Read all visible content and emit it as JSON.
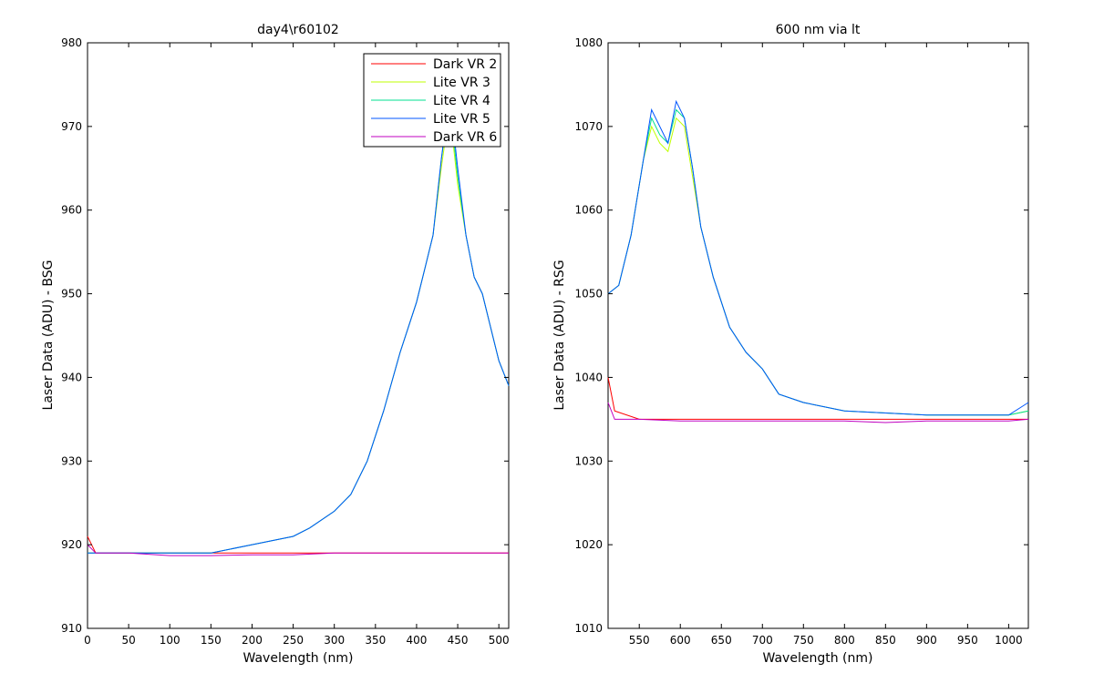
{
  "chart_data": [
    {
      "type": "line",
      "title": "day4\\r60102",
      "xlabel": "Wavelength (nm)",
      "ylabel": "Laser Data (ADU) - BSG",
      "xlim": [
        0,
        512
      ],
      "ylim": [
        910,
        980
      ],
      "xticks": [
        0,
        50,
        100,
        150,
        200,
        250,
        300,
        350,
        400,
        450,
        500
      ],
      "yticks": [
        910,
        920,
        930,
        940,
        950,
        960,
        970,
        980
      ],
      "legend_position": "top-right",
      "series": [
        {
          "name": "Dark VR 2",
          "color": "#ff0000",
          "x": [
            0,
            10,
            50,
            100,
            150,
            200,
            250,
            300,
            350,
            400,
            450,
            500,
            512
          ],
          "y": [
            921,
            919,
            919,
            919,
            919,
            919,
            919,
            919,
            919,
            919,
            919,
            919,
            919
          ]
        },
        {
          "name": "Lite VR 3",
          "color": "#bfff00",
          "x": [
            0,
            50,
            100,
            150,
            200,
            250,
            270,
            300,
            320,
            340,
            360,
            380,
            400,
            410,
            420,
            430,
            440,
            450,
            460,
            470,
            480,
            490,
            500,
            512
          ],
          "y": [
            919,
            919,
            919,
            919,
            920,
            921,
            922,
            924,
            926,
            930,
            936,
            943,
            949,
            953,
            957,
            965,
            972,
            963,
            957,
            952,
            950,
            946,
            942,
            939
          ]
        },
        {
          "name": "Lite VR 4",
          "color": "#00e090",
          "x": [
            0,
            50,
            100,
            150,
            200,
            250,
            270,
            300,
            320,
            340,
            360,
            380,
            400,
            410,
            420,
            430,
            440,
            450,
            460,
            470,
            480,
            490,
            500,
            512
          ],
          "y": [
            919,
            919,
            919,
            919,
            920,
            921,
            922,
            924,
            926,
            930,
            936,
            943,
            949,
            953,
            957,
            966,
            973,
            964,
            957,
            952,
            950,
            946,
            942,
            939
          ]
        },
        {
          "name": "Lite VR 5",
          "color": "#0055ff",
          "x": [
            0,
            50,
            100,
            150,
            200,
            250,
            270,
            300,
            320,
            340,
            360,
            380,
            400,
            410,
            420,
            430,
            440,
            450,
            460,
            470,
            480,
            490,
            500,
            512
          ],
          "y": [
            919,
            919,
            919,
            919,
            920,
            921,
            922,
            924,
            926,
            930,
            936,
            943,
            949,
            953,
            957,
            966,
            974,
            965,
            957,
            952,
            950,
            946,
            942,
            939
          ]
        },
        {
          "name": "Dark VR 6",
          "color": "#c000c0",
          "x": [
            0,
            10,
            50,
            100,
            150,
            200,
            250,
            300,
            350,
            400,
            450,
            500,
            512
          ],
          "y": [
            920,
            919,
            919,
            918.7,
            918.7,
            918.8,
            918.8,
            919,
            919,
            919,
            919,
            919,
            919
          ]
        }
      ]
    },
    {
      "type": "line",
      "title": "600 nm via lt",
      "xlabel": "Wavelength (nm)",
      "ylabel": "Laser Data (ADU) - RSG",
      "xlim": [
        512,
        1024
      ],
      "ylim": [
        1010,
        1080
      ],
      "xticks": [
        550,
        600,
        650,
        700,
        750,
        800,
        850,
        900,
        950,
        1000
      ],
      "yticks": [
        1010,
        1020,
        1030,
        1040,
        1050,
        1060,
        1070,
        1080
      ],
      "series": [
        {
          "name": "Dark VR 2",
          "color": "#ff0000",
          "x": [
            512,
            520,
            550,
            600,
            650,
            700,
            750,
            800,
            850,
            900,
            950,
            1000,
            1024
          ],
          "y": [
            1040,
            1036,
            1035,
            1035,
            1035,
            1035,
            1035,
            1035,
            1035,
            1035,
            1035,
            1035,
            1035
          ]
        },
        {
          "name": "Lite VR 3",
          "color": "#bfff00",
          "x": [
            512,
            525,
            540,
            555,
            565,
            575,
            585,
            595,
            605,
            615,
            625,
            640,
            660,
            680,
            700,
            720,
            750,
            800,
            900,
            1000,
            1024
          ],
          "y": [
            1050,
            1051,
            1057,
            1066,
            1070,
            1068,
            1067,
            1071,
            1070,
            1064,
            1058,
            1052,
            1046,
            1043,
            1041,
            1038,
            1037,
            1036,
            1035.5,
            1035.5,
            1036
          ]
        },
        {
          "name": "Lite VR 4",
          "color": "#00e090",
          "x": [
            512,
            525,
            540,
            555,
            565,
            575,
            585,
            595,
            605,
            615,
            625,
            640,
            660,
            680,
            700,
            720,
            750,
            800,
            900,
            1000,
            1024
          ],
          "y": [
            1050,
            1051,
            1057,
            1066,
            1071,
            1069,
            1068,
            1072,
            1071,
            1065,
            1058,
            1052,
            1046,
            1043,
            1041,
            1038,
            1037,
            1036,
            1035.5,
            1035.5,
            1036
          ]
        },
        {
          "name": "Lite VR 5",
          "color": "#0055ff",
          "x": [
            512,
            525,
            540,
            555,
            565,
            575,
            585,
            595,
            605,
            615,
            625,
            640,
            660,
            680,
            700,
            720,
            750,
            800,
            900,
            1000,
            1024
          ],
          "y": [
            1050,
            1051,
            1057,
            1066,
            1072,
            1070,
            1068,
            1073,
            1071,
            1065,
            1058,
            1052,
            1046,
            1043,
            1041,
            1038,
            1037,
            1036,
            1035.5,
            1035.5,
            1037
          ]
        },
        {
          "name": "Dark VR 6",
          "color": "#c000c0",
          "x": [
            512,
            520,
            550,
            600,
            650,
            700,
            750,
            800,
            850,
            900,
            950,
            1000,
            1024
          ],
          "y": [
            1037,
            1035,
            1035,
            1034.8,
            1034.8,
            1034.8,
            1034.8,
            1034.8,
            1034.6,
            1034.8,
            1034.8,
            1034.8,
            1035
          ]
        }
      ]
    }
  ]
}
